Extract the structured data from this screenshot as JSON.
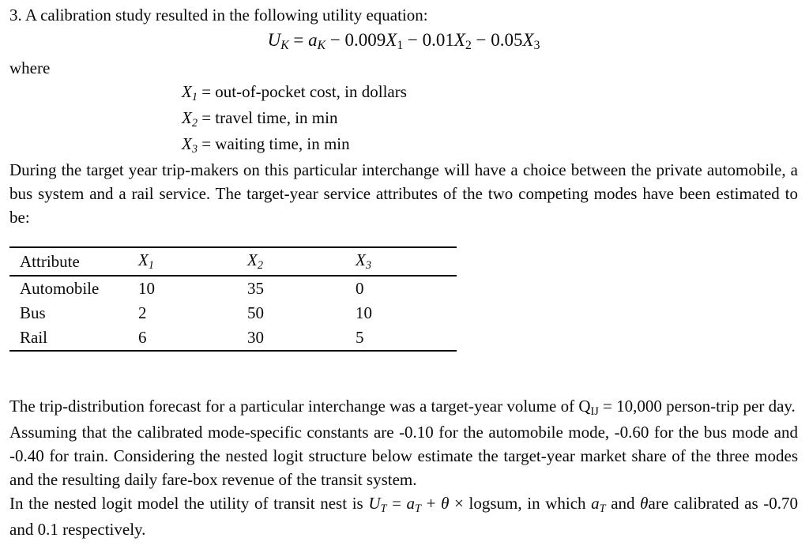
{
  "heading": "3. A calibration study resulted in the following utility equation:",
  "where_label": "where",
  "equation": [
    {
      "t": "U",
      "y": "i"
    },
    {
      "t": "K",
      "y": "is"
    },
    {
      "t": " = ",
      "y": "n"
    },
    {
      "t": "a",
      "y": "i"
    },
    {
      "t": "K",
      "y": "is"
    },
    {
      "t": " − 0.009",
      "y": "n"
    },
    {
      "t": "X",
      "y": "i"
    },
    {
      "t": "1",
      "y": "s"
    },
    {
      "t": " − 0.01",
      "y": "n"
    },
    {
      "t": "X",
      "y": "i"
    },
    {
      "t": "2",
      "y": "s"
    },
    {
      "t": " − 0.05",
      "y": "n"
    },
    {
      "t": "X",
      "y": "i"
    },
    {
      "t": "3",
      "y": "s"
    }
  ],
  "definitions": [
    [
      {
        "t": "X",
        "y": "i"
      },
      {
        "t": "1",
        "y": "is"
      },
      {
        "t": " = out-of-pocket cost, in dollars",
        "y": "n"
      }
    ],
    [
      {
        "t": "X",
        "y": "i"
      },
      {
        "t": "2",
        "y": "is"
      },
      {
        "t": " = travel time, in min",
        "y": "n"
      }
    ],
    [
      {
        "t": "X",
        "y": "i"
      },
      {
        "t": "3",
        "y": "is"
      },
      {
        "t": " = waiting time, in min",
        "y": "n"
      }
    ]
  ],
  "paragraph_modes": "During the target year trip-makers on this particular interchange will have a choice between the private automobile, a bus system and a rail service. The target-year service attributes of the two competing modes have been estimated to be:",
  "table": {
    "headers": [
      [
        {
          "t": "Attribute",
          "y": "n"
        }
      ],
      [
        {
          "t": "X",
          "y": "i"
        },
        {
          "t": "1",
          "y": "is"
        }
      ],
      [
        {
          "t": "X",
          "y": "i"
        },
        {
          "t": "2",
          "y": "is"
        }
      ],
      [
        {
          "t": "X",
          "y": "i"
        },
        {
          "t": "3",
          "y": "is"
        }
      ]
    ],
    "rows": [
      {
        "cells": [
          "Automobile",
          "10",
          "35",
          "0"
        ]
      },
      {
        "cells": [
          "Bus",
          "2",
          "50",
          "10"
        ]
      },
      {
        "cells": [
          "Rail",
          "6",
          "30",
          "5"
        ]
      }
    ]
  },
  "paragraph_forecast": [
    {
      "t": "The trip-distribution forecast for a particular interchange was a target-year volume of Q",
      "y": "n"
    },
    {
      "t": "IJ",
      "y": "s"
    },
    {
      "t": " = 10,000 person-trip per day.",
      "y": "n"
    }
  ],
  "paragraph_assumption": "Assuming that the calibrated mode-specific constants are -0.10 for the automobile mode, -0.60 for the bus mode and -0.40 for train. Considering the nested logit structure below estimate the target-year market share of the three modes and the resulting daily fare-box revenue of the transit system.",
  "paragraph_nested": [
    {
      "t": "In the nested logit model the utility of transit nest is  ",
      "y": "n"
    },
    {
      "t": "U",
      "y": "i"
    },
    {
      "t": "T",
      "y": "is"
    },
    {
      "t": " = ",
      "y": "n"
    },
    {
      "t": "a",
      "y": "i"
    },
    {
      "t": "T",
      "y": "is"
    },
    {
      "t": " + ",
      "y": "n"
    },
    {
      "t": "θ",
      "y": "i"
    },
    {
      "t": " × logsum, in which ",
      "y": "n"
    },
    {
      "t": "a",
      "y": "i"
    },
    {
      "t": "T",
      "y": "is"
    },
    {
      "t": " and ",
      "y": "n"
    },
    {
      "t": "θ",
      "y": "i"
    },
    {
      "t": "are calibrated as -0.70 and 0.1 respectively.",
      "y": "n"
    }
  ]
}
